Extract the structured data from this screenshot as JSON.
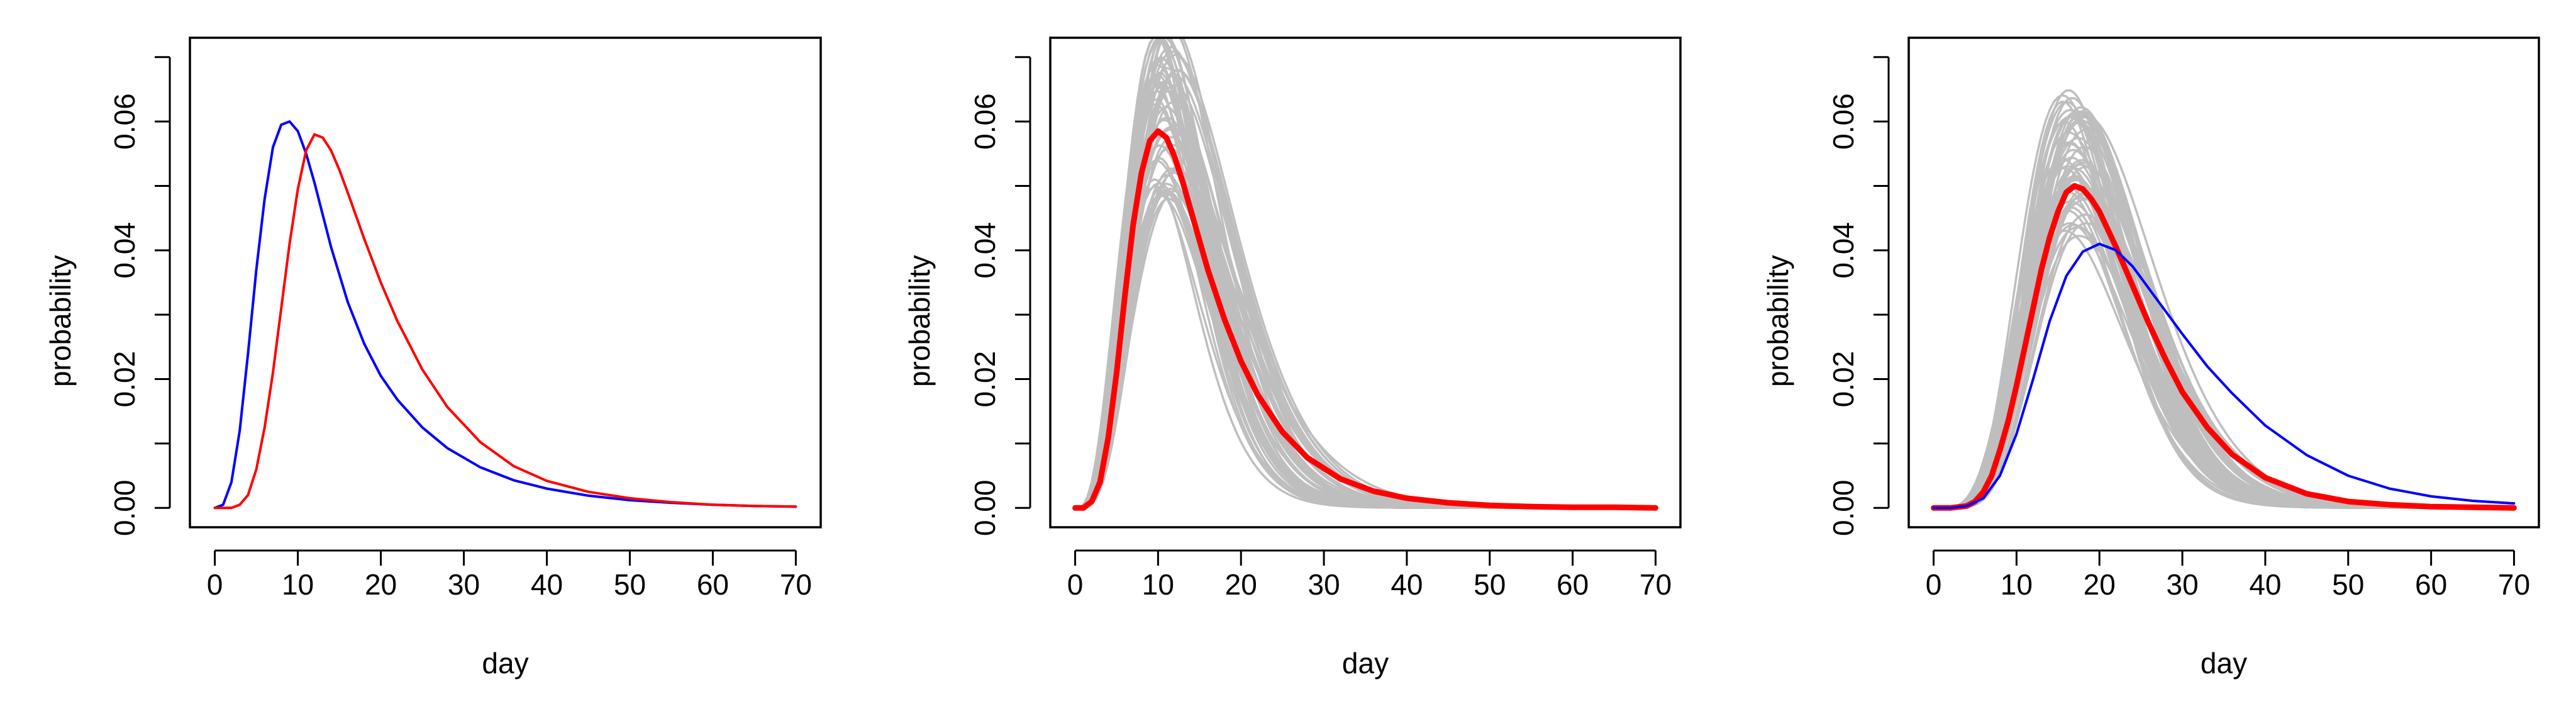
{
  "chart_data": [
    {
      "type": "line",
      "panel": "left",
      "xlabel": "day",
      "ylabel": "probability",
      "xlim": [
        -3,
        73
      ],
      "ylim": [
        -0.003,
        0.073
      ],
      "xticks": [
        0,
        10,
        20,
        30,
        40,
        50,
        60,
        70
      ],
      "yticks": [
        0.0,
        0.02,
        0.04,
        0.06
      ],
      "ytick_labels": [
        "0.00",
        "0.02",
        "0.04",
        "0.06"
      ],
      "ymidticks": [
        0.01,
        0.03,
        0.05,
        0.07
      ],
      "grid": false,
      "series": [
        {
          "color": "#0000ff",
          "x": [
            0,
            1,
            2,
            3,
            4,
            5,
            6,
            7,
            8,
            9,
            10,
            11,
            12,
            13,
            14,
            16,
            18,
            20,
            22,
            25,
            28,
            32,
            36,
            40,
            45,
            50,
            55,
            60,
            65,
            70
          ],
          "y": [
            0,
            0.0005,
            0.004,
            0.012,
            0.024,
            0.037,
            0.048,
            0.056,
            0.0595,
            0.06,
            0.0585,
            0.055,
            0.0505,
            0.0455,
            0.0405,
            0.032,
            0.0255,
            0.0205,
            0.0168,
            0.0125,
            0.0093,
            0.0063,
            0.0043,
            0.003,
            0.0019,
            0.0012,
            0.0008,
            0.0005,
            0.0003,
            0.0002
          ]
        },
        {
          "color": "#ff0000",
          "x": [
            0,
            2,
            3,
            4,
            5,
            6,
            7,
            8,
            9,
            10,
            11,
            12,
            13,
            14,
            15,
            16,
            18,
            20,
            22,
            25,
            28,
            32,
            36,
            40,
            45,
            50,
            55,
            60,
            65,
            70
          ],
          "y": [
            0,
            0,
            0.0005,
            0.002,
            0.006,
            0.0125,
            0.021,
            0.031,
            0.041,
            0.0495,
            0.0555,
            0.058,
            0.0575,
            0.0555,
            0.0525,
            0.049,
            0.0418,
            0.035,
            0.029,
            0.0215,
            0.0157,
            0.0102,
            0.0065,
            0.0042,
            0.0025,
            0.0015,
            0.0009,
            0.0005,
            0.0003,
            0.0002
          ]
        }
      ]
    },
    {
      "type": "line",
      "panel": "middle",
      "xlabel": "day",
      "ylabel": "probability",
      "xlim": [
        -3,
        73
      ],
      "ylim": [
        -0.003,
        0.073
      ],
      "xticks": [
        0,
        10,
        20,
        30,
        40,
        50,
        60,
        70
      ],
      "yticks": [
        0.0,
        0.02,
        0.04,
        0.06
      ],
      "ytick_labels": [
        "0.00",
        "0.02",
        "0.04",
        "0.06"
      ],
      "ymidticks": [
        0.01,
        0.03,
        0.05,
        0.07
      ],
      "grid": false,
      "ensemble": {
        "color": "#bebebe",
        "count": 60,
        "peak_range": [
          0.048,
          0.075
        ],
        "mode_range": [
          9.5,
          12.5
        ],
        "shape_range": [
          4.2,
          6.0
        ]
      },
      "series": [
        {
          "color": "#ff0000",
          "bold": true,
          "x": [
            0,
            1,
            2,
            3,
            4,
            5,
            6,
            7,
            8,
            9,
            10,
            11,
            12,
            13,
            14,
            15,
            16,
            18,
            20,
            22,
            25,
            28,
            32,
            36,
            40,
            45,
            50,
            55,
            60,
            65,
            70
          ],
          "y": [
            0,
            0,
            0.001,
            0.004,
            0.011,
            0.021,
            0.033,
            0.044,
            0.052,
            0.057,
            0.0585,
            0.0575,
            0.0545,
            0.0505,
            0.046,
            0.0415,
            0.037,
            0.0293,
            0.0228,
            0.0176,
            0.0118,
            0.0078,
            0.0045,
            0.0026,
            0.0015,
            0.0008,
            0.0004,
            0.0002,
            0.0001,
            0.0001,
            0
          ]
        }
      ]
    },
    {
      "type": "line",
      "panel": "right",
      "xlabel": "day",
      "ylabel": "probability",
      "xlim": [
        -3,
        73
      ],
      "ylim": [
        -0.003,
        0.073
      ],
      "xticks": [
        0,
        10,
        20,
        30,
        40,
        50,
        60,
        70
      ],
      "yticks": [
        0.0,
        0.02,
        0.04,
        0.06
      ],
      "ytick_labels": [
        "0.00",
        "0.02",
        "0.04",
        "0.06"
      ],
      "ymidticks": [
        0.01,
        0.03,
        0.05,
        0.07
      ],
      "grid": false,
      "ensemble": {
        "color": "#bebebe",
        "count": 60,
        "peak_range": [
          0.042,
          0.065
        ],
        "mode_range": [
          15.5,
          18.5
        ],
        "shape_range": [
          6.5,
          9.5
        ]
      },
      "series": [
        {
          "color": "#ff0000",
          "bold": true,
          "x": [
            0,
            2,
            4,
            5,
            6,
            7,
            8,
            9,
            10,
            11,
            12,
            13,
            14,
            15,
            16,
            17,
            18,
            19,
            20,
            22,
            24,
            26,
            28,
            30,
            33,
            36,
            40,
            45,
            50,
            55,
            60,
            65,
            70
          ],
          "y": [
            0,
            0,
            0.0003,
            0.001,
            0.0025,
            0.005,
            0.009,
            0.0135,
            0.019,
            0.025,
            0.031,
            0.037,
            0.042,
            0.046,
            0.049,
            0.05,
            0.0495,
            0.048,
            0.046,
            0.0405,
            0.0345,
            0.0285,
            0.023,
            0.018,
            0.0125,
            0.0083,
            0.0047,
            0.0022,
            0.001,
            0.0005,
            0.0002,
            0.0001,
            0
          ]
        },
        {
          "color": "#0000ff",
          "bold": false,
          "x": [
            0,
            2,
            4,
            6,
            8,
            10,
            12,
            14,
            16,
            18,
            20,
            22,
            24,
            26,
            28,
            30,
            33,
            36,
            40,
            45,
            50,
            55,
            60,
            65,
            70
          ],
          "y": [
            0,
            0,
            0.0003,
            0.0015,
            0.005,
            0.0115,
            0.02,
            0.029,
            0.036,
            0.0398,
            0.041,
            0.04,
            0.0375,
            0.034,
            0.0305,
            0.027,
            0.022,
            0.0178,
            0.0128,
            0.0082,
            0.005,
            0.003,
            0.0018,
            0.0011,
            0.0007
          ]
        }
      ]
    }
  ]
}
